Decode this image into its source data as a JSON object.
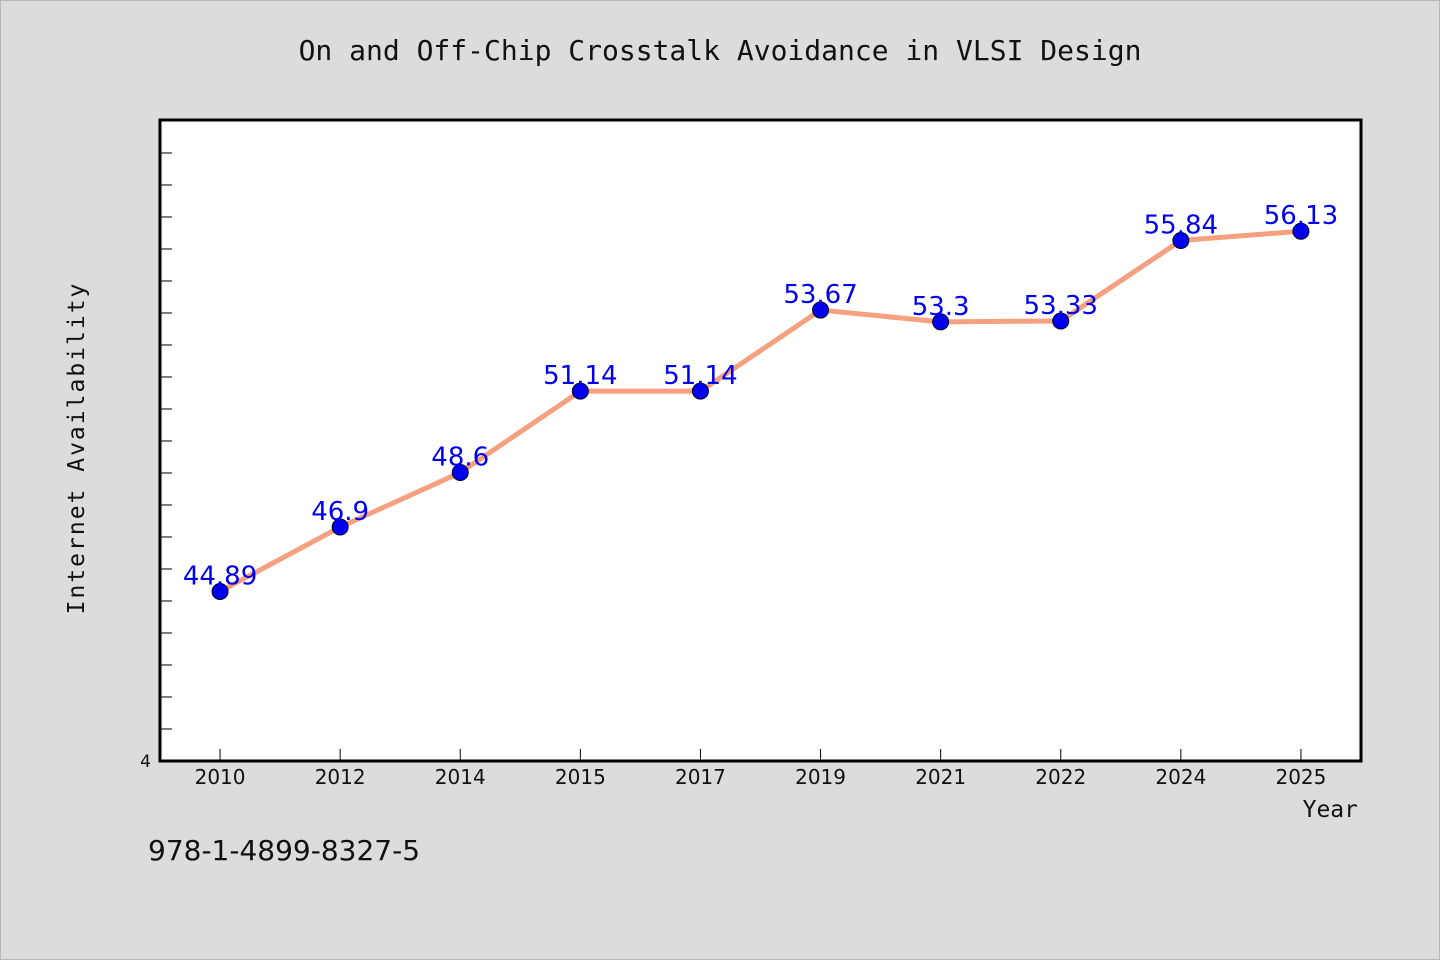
{
  "chart_data": {
    "type": "line",
    "title": "On and Off-Chip Crosstalk Avoidance in VLSI Design",
    "xlabel": "Year",
    "ylabel": "Internet Availability",
    "categories": [
      "2010",
      "2012",
      "2014",
      "2015",
      "2017",
      "2019",
      "2021",
      "2022",
      "2024",
      "2025"
    ],
    "series": [
      {
        "values": [
          44.89,
          46.9,
          48.6,
          51.14,
          51.14,
          53.67,
          53.3,
          53.33,
          55.84,
          56.13
        ],
        "labels": [
          "44.89",
          "46.9",
          "48.6",
          "51.14",
          "51.14",
          "53.67",
          "53.3",
          "53.33",
          "55.84",
          "56.13"
        ]
      }
    ],
    "ylim": [
      39.6,
      59.6
    ],
    "y_tick_labels": [
      "4"
    ],
    "grid": false,
    "legend": "none"
  },
  "colors": {
    "line": "#f5a07e",
    "marker": "#0000ee",
    "label": "#0000ee",
    "plot_bg": "#ffffff",
    "page_bg": "#dcdcdc"
  },
  "footer": {
    "isbn": "978-1-4899-8327-5"
  }
}
